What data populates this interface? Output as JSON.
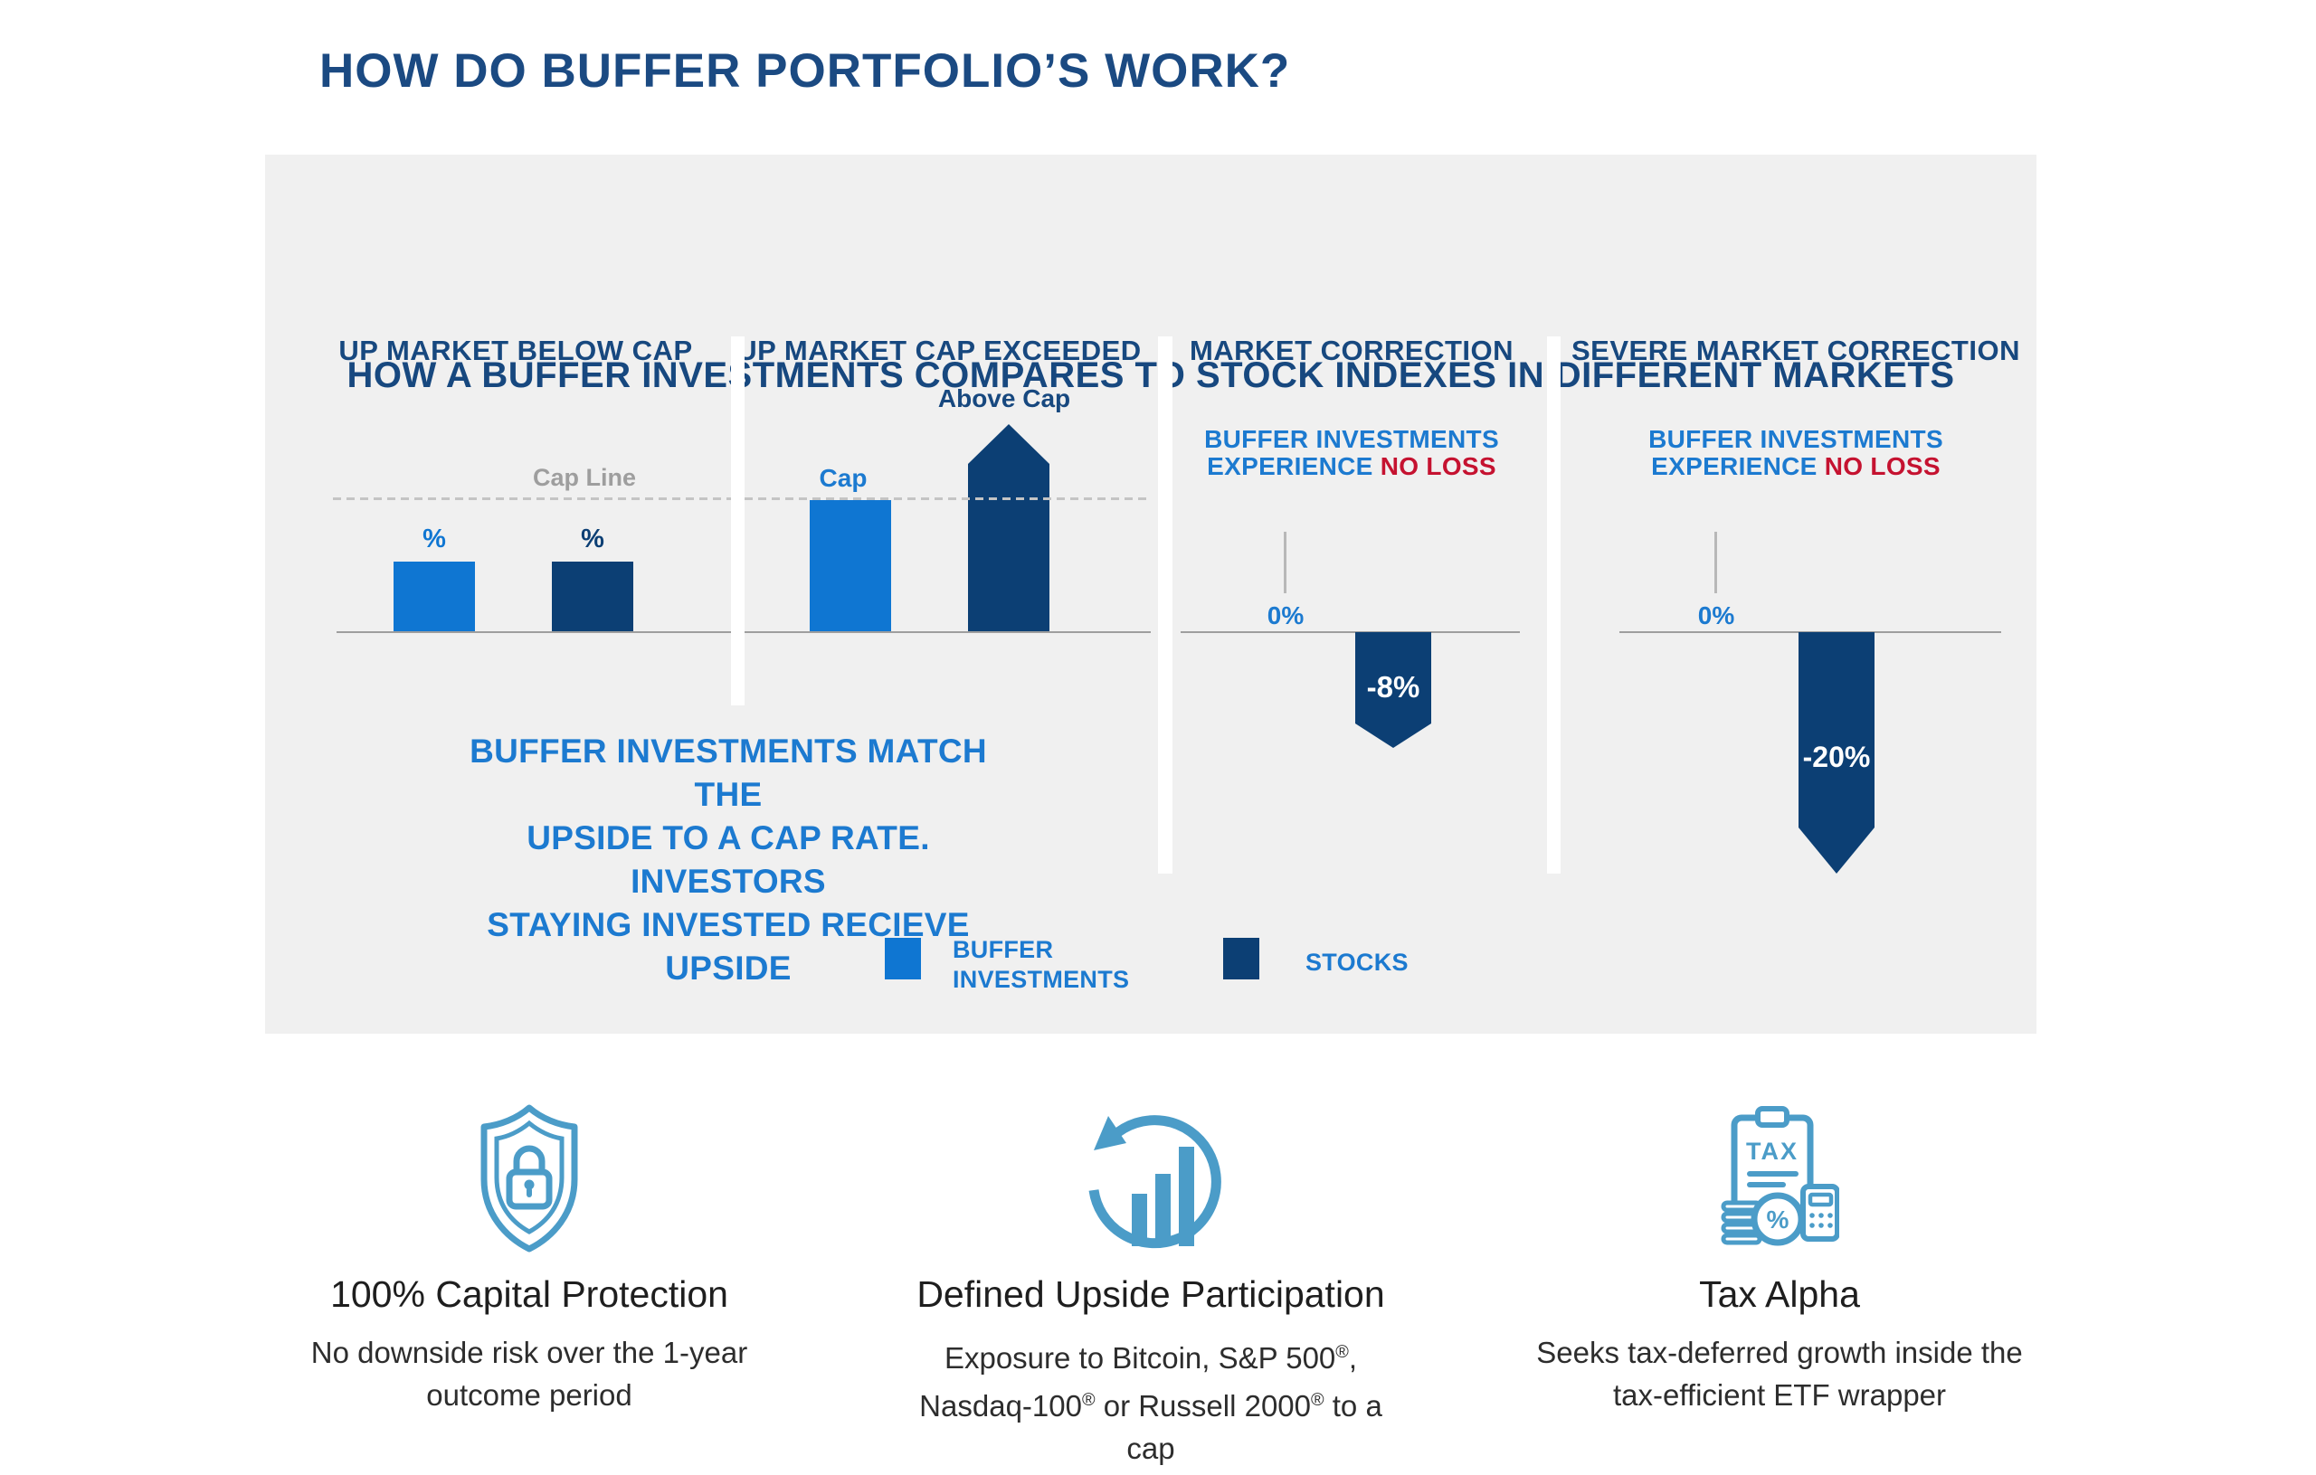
{
  "page_title": "HOW DO BUFFER PORTFOLIO’S WORK?",
  "panel": {
    "title": "HOW A BUFFER INVESTMENTS COMPARES TO STOCK INDEXES IN DIFFERENT MARKETS",
    "cap_line_label": "Cap Line",
    "col1": {
      "header": "UP MARKET BELOW CAP",
      "bar1_label": "%",
      "bar2_label": "%"
    },
    "col2": {
      "header": "UP MARKET CAP EXCEEDED",
      "cap_label": "Cap",
      "above_cap_label": "Above Cap"
    },
    "col3": {
      "header": "MARKET CORRECTION",
      "exp_line1": "BUFFER INVESTMENTS",
      "exp_blue": "EXPERIENCE",
      "exp_red": "NO LOSS",
      "zero_label": "0%",
      "loss_label": "-8%"
    },
    "col4": {
      "header": "SEVERE MARKET CORRECTION",
      "exp_line1": "BUFFER INVESTMENTS",
      "exp_blue": "EXPERIENCE",
      "exp_red": "NO LOSS",
      "zero_label": "0%",
      "loss_label": "-20%"
    },
    "note_lines": [
      "BUFFER INVESTMENTS MATCH THE",
      "UPSIDE TO A CAP RATE. INVESTORS",
      "STAYING INVESTED RECIEVE UPSIDE"
    ],
    "legend": {
      "buffer_line1": "BUFFER",
      "buffer_line2": "INVESTMENTS",
      "stocks": "STOCKS"
    }
  },
  "features": [
    {
      "title": "100% Capital Protection",
      "desc_lines": [
        "No downside risk over the 1-year",
        "outcome period"
      ],
      "icon": "shield-lock-icon"
    },
    {
      "title": "Defined Upside Participation",
      "desc_lines": [
        "Exposure to Bitcoin, S&P 500®,",
        "Nasdaq-100® or Russell 2000® to a",
        "cap"
      ],
      "icon": "growth-chart-icon"
    },
    {
      "title": "Tax Alpha",
      "desc_lines": [
        "Seeks tax-deferred growth inside the",
        "tax-efficient ETF wrapper"
      ],
      "icon": "tax-calculator-icon",
      "icon_text_tax": "TAX",
      "icon_text_percent": "%"
    }
  ],
  "colors": {
    "buffer_blue": "#0f76d2",
    "stocks_navy": "#0c3f74",
    "text_blue": "#1c7ad0",
    "heading_navy": "#17487f",
    "no_loss_red": "#c51230",
    "icon_blue": "#4b9cc8",
    "panel_gray": "#f0f0f0"
  },
  "chart_data": [
    {
      "type": "bar",
      "title": "UP MARKET BELOW CAP",
      "categories": [
        "BUFFER INVESTMENTS",
        "STOCKS"
      ],
      "values": [
        "%",
        "%"
      ],
      "annotations": [
        "Cap Line (dashed, both bars end below it)"
      ],
      "note": "Both bars equal height, below the cap line"
    },
    {
      "type": "bar",
      "title": "UP MARKET CAP EXCEEDED",
      "categories": [
        "BUFFER INVESTMENTS",
        "STOCKS"
      ],
      "values": [
        "Cap",
        "Above Cap"
      ],
      "note": "Buffer bar stops exactly at the cap line; stocks drawn as upward arrow exceeding the cap line"
    },
    {
      "type": "bar",
      "title": "MARKET CORRECTION",
      "categories": [
        "BUFFER INVESTMENTS",
        "STOCKS"
      ],
      "values": [
        0,
        -8
      ],
      "unit": "%",
      "note": "BUFFER INVESTMENTS EXPERIENCE NO LOSS; stocks shown as downward arrow to -8%"
    },
    {
      "type": "bar",
      "title": "SEVERE MARKET CORRECTION",
      "categories": [
        "BUFFER INVESTMENTS",
        "STOCKS"
      ],
      "values": [
        0,
        -20
      ],
      "unit": "%",
      "note": "BUFFER INVESTMENTS EXPERIENCE NO LOSS; stocks shown as downward arrow to -20%"
    }
  ]
}
